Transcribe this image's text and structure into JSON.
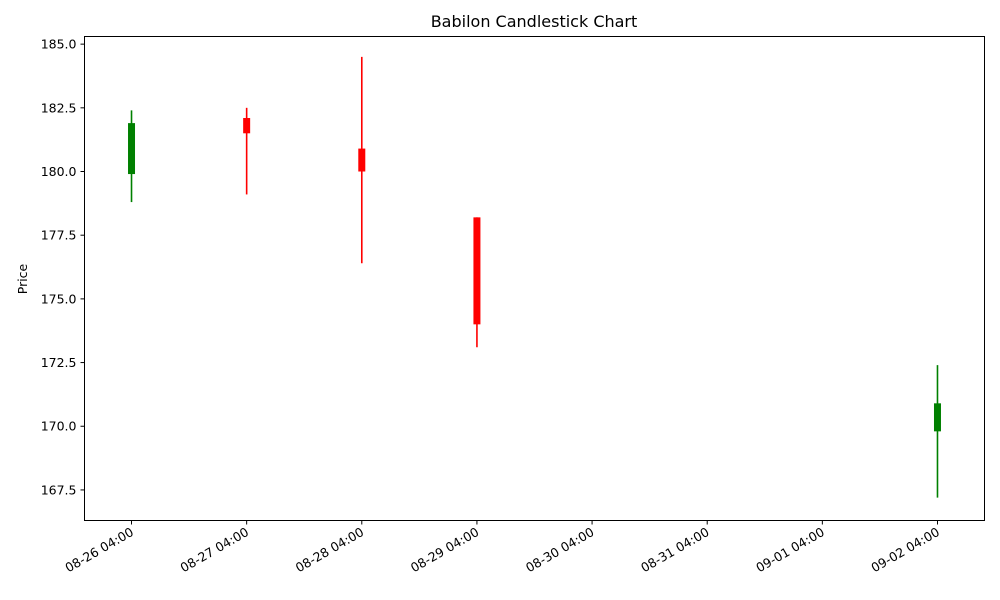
{
  "chart_data": {
    "type": "candlestick",
    "title": "Babilon Candlestick Chart",
    "xlabel": "",
    "ylabel": "Price",
    "ylim": [
      166.3,
      185.3
    ],
    "xlim": [
      "2025-08-25 18:12",
      "2025-09-02 13:48"
    ],
    "colors": {
      "up": "#008000",
      "down": "#ff0000"
    },
    "x_ticks": [
      {
        "date": "2025-08-26 04:00",
        "label": "08-26 04:00"
      },
      {
        "date": "2025-08-27 04:00",
        "label": "08-27 04:00"
      },
      {
        "date": "2025-08-28 04:00",
        "label": "08-28 04:00"
      },
      {
        "date": "2025-08-29 04:00",
        "label": "08-29 04:00"
      },
      {
        "date": "2025-08-30 04:00",
        "label": "08-30 04:00"
      },
      {
        "date": "2025-08-31 04:00",
        "label": "08-31 04:00"
      },
      {
        "date": "2025-09-01 04:00",
        "label": "09-01 04:00"
      },
      {
        "date": "2025-09-02 04:00",
        "label": "09-02 04:00"
      }
    ],
    "y_ticks": [
      {
        "value": 167.5,
        "label": "167.5"
      },
      {
        "value": 170.0,
        "label": "170.0"
      },
      {
        "value": 172.5,
        "label": "172.5"
      },
      {
        "value": 175.0,
        "label": "175.0"
      },
      {
        "value": 177.5,
        "label": "177.5"
      },
      {
        "value": 180.0,
        "label": "180.0"
      },
      {
        "value": 182.5,
        "label": "182.5"
      },
      {
        "value": 185.0,
        "label": "185.0"
      }
    ],
    "candles": [
      {
        "date": "2025-08-26 04:00",
        "open": 179.9,
        "high": 182.4,
        "low": 178.8,
        "close": 181.9
      },
      {
        "date": "2025-08-27 04:00",
        "open": 182.1,
        "high": 182.5,
        "low": 179.1,
        "close": 181.5
      },
      {
        "date": "2025-08-28 04:00",
        "open": 180.9,
        "high": 184.5,
        "low": 176.4,
        "close": 180.0
      },
      {
        "date": "2025-08-29 04:00",
        "open": 178.2,
        "high": 178.2,
        "low": 173.1,
        "close": 174.0
      },
      {
        "date": "2025-09-02 04:00",
        "open": 169.8,
        "high": 172.4,
        "low": 167.2,
        "close": 170.9
      }
    ]
  }
}
